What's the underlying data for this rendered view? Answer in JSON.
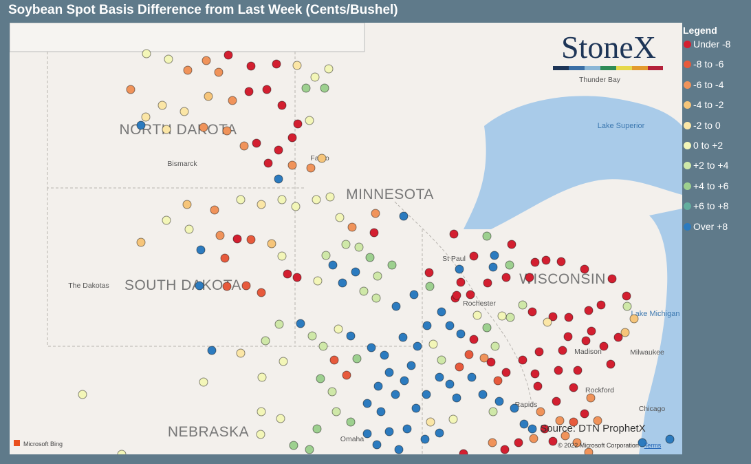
{
  "header": {
    "title": "Soybean Spot Basis Difference from Last Week (Cents/Bushel)"
  },
  "logo": {
    "text": "StoneX"
  },
  "legend": {
    "title": "Legend",
    "items": [
      {
        "label": "Under -8",
        "color": "#d31f30"
      },
      {
        "label": "-8 to -6",
        "color": "#e75a3c"
      },
      {
        "label": "-6 to -4",
        "color": "#f0935a"
      },
      {
        "label": "-4 to -2",
        "color": "#f6c57a"
      },
      {
        "label": "-2 to 0",
        "color": "#fbe6a6"
      },
      {
        "label": "0 to +2",
        "color": "#f3f6b8"
      },
      {
        "label": "+2 to +4",
        "color": "#cfe8a8"
      },
      {
        "label": "+4 to +6",
        "color": "#9dd08f"
      },
      {
        "label": "+6 to +8",
        "color": "#63ae9e"
      },
      {
        "label": "Over +8",
        "color": "#2c7bbf"
      }
    ]
  },
  "map": {
    "labels": {
      "north_dakota": "NORTH DAKOTA",
      "south_dakota": "SOUTH DAKOTA",
      "minnesota": "MINNESOTA",
      "wisconsin": "WISCONSIN",
      "nebraska": "NEBRASKA",
      "dakotas": "The Dakotas",
      "bismarck": "Bismarck",
      "fargo": "Fargo",
      "st_paul": "St Paul",
      "rochester": "Rochester",
      "thunder_bay": "Thunder Bay",
      "lake_superior": "Lake Superior",
      "lake_michigan": "Lake Michigan",
      "milwaukee": "Milwaukee",
      "madison": "Madison",
      "rockford": "Rockford",
      "chicago": "Chicago",
      "rapids": "Rapids",
      "omaha": "Omaha"
    },
    "source": "Source: DTN ProphetX",
    "copyright": "© 2022 Microsoft Corporation",
    "terms": "Terms",
    "provider": "Microsoft Bing"
  }
}
